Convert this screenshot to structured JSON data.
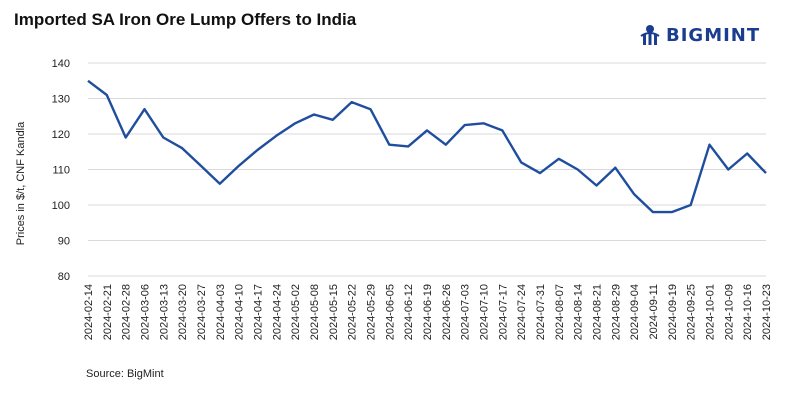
{
  "title": "Imported SA Iron Ore Lump Offers to India",
  "brand": {
    "name": "BIGMINT",
    "color": "#1a3d8f",
    "icon": "bigmint-logo-icon"
  },
  "source": "Source: BigMint",
  "chart_data": {
    "type": "line",
    "title": "Imported SA Iron Ore Lump Offers to India",
    "xlabel": "",
    "ylabel": "Prices in $/t, CNF Kandla",
    "ylim": [
      80,
      140
    ],
    "yticks": [
      80,
      90,
      100,
      110,
      120,
      130,
      140
    ],
    "grid": true,
    "legend": "none",
    "line_color": "#1f4e9e",
    "categories": [
      "2024-02-14",
      "2024-02-21",
      "2024-02-28",
      "2024-03-06",
      "2024-03-13",
      "2024-03-20",
      "2024-03-27",
      "2024-04-03",
      "2024-04-10",
      "2024-04-17",
      "2024-04-24",
      "2024-05-02",
      "2024-05-08",
      "2024-05-15",
      "2024-05-22",
      "2024-05-29",
      "2024-06-05",
      "2024-06-12",
      "2024-06-19",
      "2024-06-26",
      "2024-07-03",
      "2024-07-10",
      "2024-07-17",
      "2024-07-24",
      "2024-07-31",
      "2024-08-07",
      "2024-08-14",
      "2024-08-21",
      "2024-08-29",
      "2024-09-04",
      "2024-09-11",
      "2024-09-19",
      "2024-09-25",
      "2024-10-01",
      "2024-10-09",
      "2024-10-16",
      "2024-10-23"
    ],
    "series": [
      {
        "values": [
          135,
          131,
          119,
          127,
          119,
          116,
          111,
          106,
          111,
          115.5,
          119.5,
          123,
          125.5,
          124,
          129,
          127,
          117,
          116.5,
          121,
          117,
          122.5,
          123,
          121,
          112,
          109,
          113,
          110,
          105.5,
          110.5,
          103,
          98,
          98,
          100,
          117,
          110,
          114.5,
          109
        ]
      }
    ]
  }
}
